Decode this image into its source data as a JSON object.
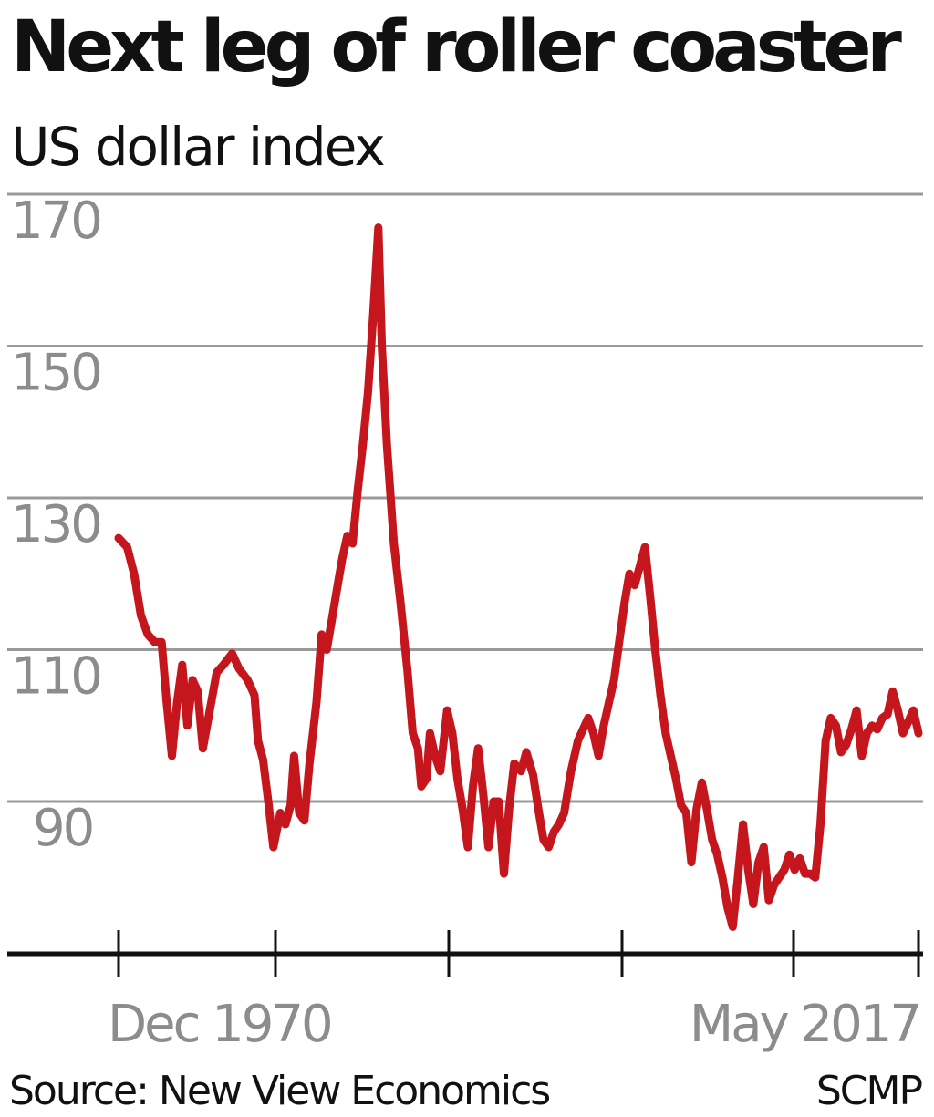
{
  "header": {
    "title": "Next leg of roller coaster",
    "subtitle": "US dollar index"
  },
  "footer": {
    "source": "Source: New View Economics",
    "credit": "SCMP"
  },
  "colors": {
    "line": "#c4161c",
    "grid": "#9a9a9a",
    "axis": "#111111",
    "tick_label": "#8c8c8c"
  },
  "chart_data": {
    "type": "line",
    "title": "Next leg of roller coaster",
    "subtitle": "US dollar index",
    "xlabel": "",
    "ylabel": "",
    "x_tick_labels": [
      "Dec 1970",
      "May 2017"
    ],
    "y_ticks": [
      90,
      110,
      130,
      150,
      170
    ],
    "ylim": [
      70,
      174
    ],
    "xlim": [
      1970.9,
      2017.4
    ],
    "grid": true,
    "legend": "none",
    "series": [
      {
        "values": [
          [
            1970.9,
            124.7
          ],
          [
            1971.4,
            123.5
          ],
          [
            1971.8,
            120.0
          ],
          [
            1972.2,
            114.5
          ],
          [
            1972.6,
            112.0
          ],
          [
            1973.0,
            111.0
          ],
          [
            1973.4,
            111.0
          ],
          [
            1973.7,
            103.0
          ],
          [
            1974.0,
            96.0
          ],
          [
            1974.3,
            103.0
          ],
          [
            1974.6,
            108.0
          ],
          [
            1974.9,
            100.0
          ],
          [
            1975.2,
            106.0
          ],
          [
            1975.5,
            104.5
          ],
          [
            1975.8,
            97.0
          ],
          [
            1976.2,
            102.0
          ],
          [
            1976.6,
            107.0
          ],
          [
            1977.0,
            108.0
          ],
          [
            1977.5,
            109.5
          ],
          [
            1977.9,
            107.5
          ],
          [
            1978.4,
            106.0
          ],
          [
            1978.8,
            104.0
          ],
          [
            1979.0,
            98.0
          ],
          [
            1979.3,
            95.5
          ],
          [
            1979.6,
            90.0
          ],
          [
            1979.9,
            84.0
          ],
          [
            1980.3,
            88.5
          ],
          [
            1980.6,
            87.0
          ],
          [
            1980.9,
            89.5
          ],
          [
            1981.1,
            96.0
          ],
          [
            1981.4,
            88.5
          ],
          [
            1981.7,
            87.5
          ],
          [
            1982.0,
            95.0
          ],
          [
            1982.4,
            103.0
          ],
          [
            1982.7,
            112.0
          ],
          [
            1983.0,
            110.0
          ],
          [
            1983.3,
            114.0
          ],
          [
            1983.6,
            118.0
          ],
          [
            1983.9,
            122.0
          ],
          [
            1984.2,
            125.0
          ],
          [
            1984.5,
            124.0
          ],
          [
            1984.8,
            131.0
          ],
          [
            1985.1,
            137.0
          ],
          [
            1985.4,
            144.0
          ],
          [
            1985.7,
            154.0
          ],
          [
            1986.0,
            165.6
          ],
          [
            1986.2,
            150.0
          ],
          [
            1986.5,
            137.0
          ],
          [
            1986.9,
            124.0
          ],
          [
            1987.3,
            116.0
          ],
          [
            1987.7,
            107.0
          ],
          [
            1988.0,
            99.0
          ],
          [
            1988.3,
            97.0
          ],
          [
            1988.5,
            92.0
          ],
          [
            1988.8,
            93.0
          ],
          [
            1989.0,
            99.0
          ],
          [
            1989.3,
            96.0
          ],
          [
            1989.6,
            94.0
          ],
          [
            1990.0,
            102.0
          ],
          [
            1990.3,
            99.0
          ],
          [
            1990.6,
            93.0
          ],
          [
            1990.9,
            89.0
          ],
          [
            1991.2,
            84.0
          ],
          [
            1991.5,
            92.0
          ],
          [
            1991.8,
            97.0
          ],
          [
            1992.1,
            91.0
          ],
          [
            1992.4,
            84.0
          ],
          [
            1992.7,
            90.0
          ],
          [
            1993.0,
            90.0
          ],
          [
            1993.3,
            80.5
          ],
          [
            1993.6,
            89.0
          ],
          [
            1993.9,
            95.0
          ],
          [
            1994.3,
            94.0
          ],
          [
            1994.6,
            96.5
          ],
          [
            1995.0,
            93.5
          ],
          [
            1995.3,
            89.0
          ],
          [
            1995.6,
            85.0
          ],
          [
            1995.9,
            84.0
          ],
          [
            1996.2,
            86.0
          ],
          [
            1996.5,
            87.0
          ],
          [
            1996.8,
            88.5
          ],
          [
            1997.2,
            94.0
          ],
          [
            1997.6,
            98.0
          ],
          [
            1997.9,
            99.5
          ],
          [
            1998.2,
            101.0
          ],
          [
            1998.5,
            99.0
          ],
          [
            1998.8,
            96.0
          ],
          [
            1999.1,
            100.0
          ],
          [
            1999.4,
            103.0
          ],
          [
            1999.7,
            106.0
          ],
          [
            2000.0,
            111.0
          ],
          [
            2000.3,
            116.0
          ],
          [
            2000.6,
            120.0
          ],
          [
            2000.9,
            118.5
          ],
          [
            2001.2,
            121.0
          ],
          [
            2001.5,
            123.5
          ],
          [
            2001.8,
            117.0
          ],
          [
            2002.1,
            110.0
          ],
          [
            2002.4,
            104.0
          ],
          [
            2002.7,
            99.0
          ],
          [
            2003.0,
            96.0
          ],
          [
            2003.3,
            93.0
          ],
          [
            2003.6,
            89.5
          ],
          [
            2003.9,
            88.5
          ],
          [
            2004.2,
            82.0
          ],
          [
            2004.5,
            89.0
          ],
          [
            2004.8,
            92.5
          ],
          [
            2005.1,
            89.0
          ],
          [
            2005.4,
            85.0
          ],
          [
            2005.7,
            83.0
          ],
          [
            2006.0,
            80.0
          ],
          [
            2006.3,
            76.0
          ],
          [
            2006.6,
            73.5
          ],
          [
            2006.9,
            80.0
          ],
          [
            2007.2,
            87.0
          ],
          [
            2007.5,
            81.0
          ],
          [
            2007.8,
            76.5
          ],
          [
            2008.1,
            82.0
          ],
          [
            2008.4,
            84.0
          ],
          [
            2008.7,
            77.0
          ],
          [
            2009.0,
            79.0
          ],
          [
            2009.3,
            80.0
          ],
          [
            2009.6,
            81.0
          ],
          [
            2009.9,
            83.0
          ],
          [
            2010.2,
            81.0
          ],
          [
            2010.5,
            82.5
          ],
          [
            2010.8,
            80.5
          ],
          [
            2011.1,
            80.5
          ],
          [
            2011.4,
            80.0
          ],
          [
            2011.7,
            87.0
          ],
          [
            2012.0,
            98.0
          ],
          [
            2012.3,
            101.0
          ],
          [
            2012.6,
            100.0
          ],
          [
            2012.9,
            96.5
          ],
          [
            2013.2,
            97.5
          ],
          [
            2013.5,
            99.5
          ],
          [
            2013.8,
            102.0
          ],
          [
            2014.1,
            96.0
          ],
          [
            2014.4,
            99.0
          ],
          [
            2014.7,
            100.0
          ],
          [
            2015.0,
            99.5
          ],
          [
            2015.3,
            101.0
          ],
          [
            2015.6,
            101.5
          ],
          [
            2015.9,
            104.5
          ],
          [
            2016.2,
            102.0
          ],
          [
            2016.5,
            99.0
          ],
          [
            2016.8,
            100.5
          ],
          [
            2017.1,
            102.0
          ],
          [
            2017.4,
            99.0
          ]
        ]
      }
    ]
  }
}
